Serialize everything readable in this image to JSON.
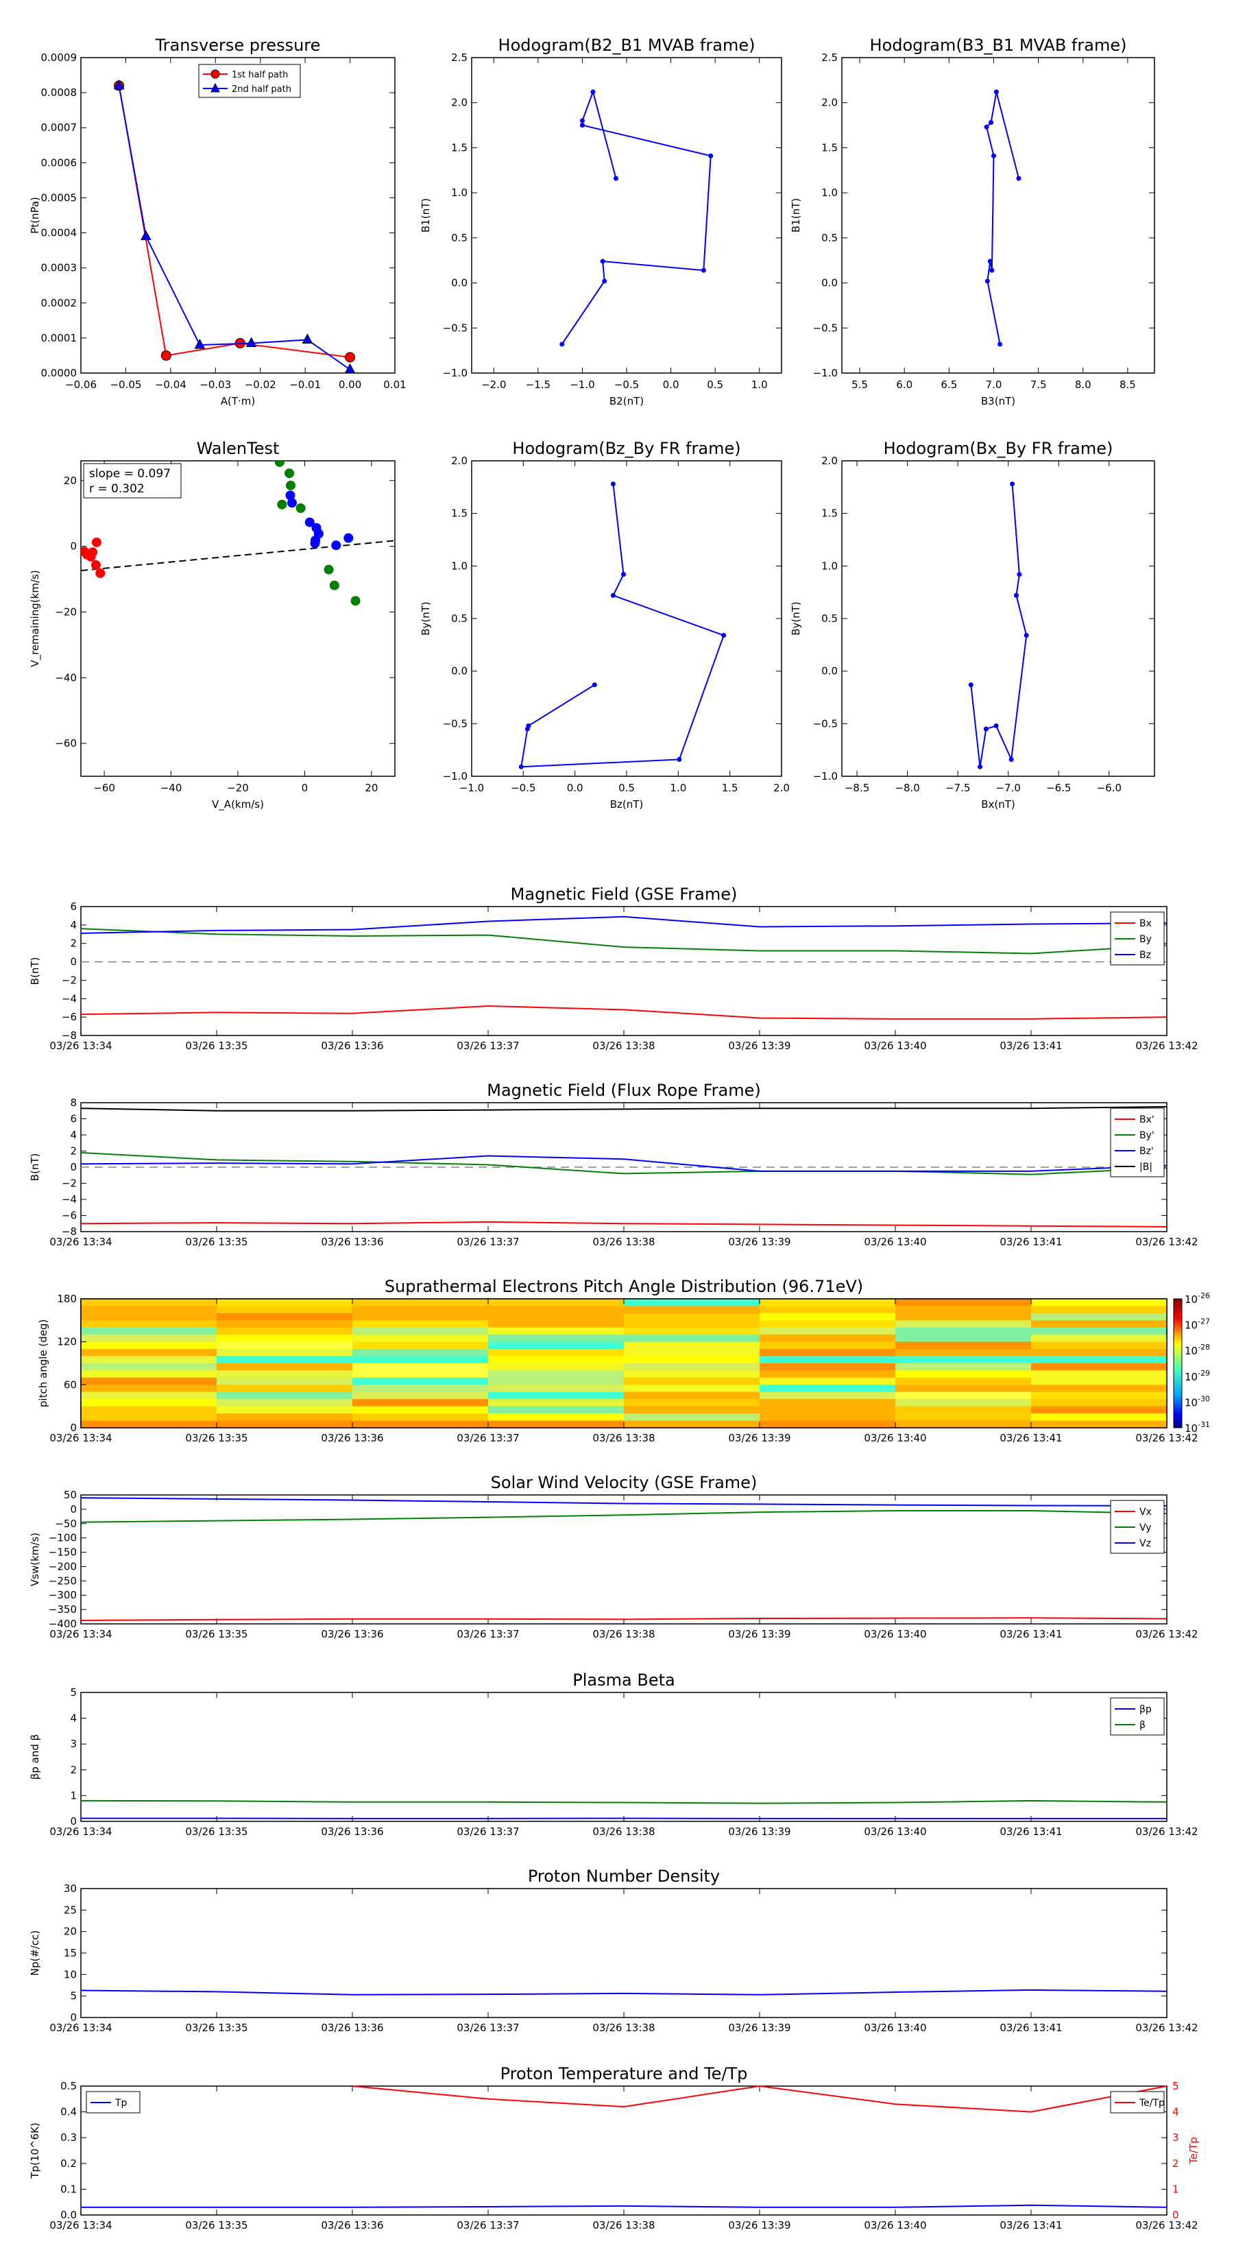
{
  "colors": {
    "red": "#ff0000",
    "green": "#008000",
    "blue": "#0000ff",
    "black": "#000000",
    "gray": "#808080",
    "darkred": "#b00000",
    "navy": "#000080"
  },
  "chart_data": [
    {
      "id": "transverse-pressure",
      "type": "line",
      "title": "Transverse pressure",
      "xlabel": "A(T·m)",
      "ylabel": "Pt(nPa)",
      "xlim": [
        -0.06,
        0.01
      ],
      "ylim": [
        0,
        0.0009
      ],
      "xticks": [
        -0.06,
        -0.05,
        -0.04,
        -0.03,
        -0.02,
        -0.01,
        0.0,
        0.01
      ],
      "xtick_labels": [
        "−0.06",
        "−0.05",
        "−0.04",
        "−0.03",
        "−0.02",
        "−0.01",
        "0.00",
        "0.01"
      ],
      "yticks": [
        0,
        0.0001,
        0.0002,
        0.0003,
        0.0004,
        0.0005,
        0.0006,
        0.0007,
        0.0008,
        0.0009
      ],
      "ytick_labels": [
        "0.0000",
        "0.0001",
        "0.0002",
        "0.0003",
        "0.0004",
        "0.0005",
        "0.0006",
        "0.0007",
        "0.0008",
        "0.0009"
      ],
      "legend": {
        "placement": "top-center",
        "entries": [
          "1st half path",
          "2nd half path"
        ]
      },
      "series": [
        {
          "name": "1st half path",
          "color": "red",
          "marker": "circle",
          "x": [
            -0.0515,
            -0.041,
            -0.0245,
            0.0
          ],
          "y": [
            0.00082,
            5e-05,
            8.5e-05,
            4.5e-05
          ]
        },
        {
          "name": "2nd half path",
          "color": "blue",
          "marker": "triangle",
          "x": [
            -0.0515,
            -0.0455,
            -0.0335,
            -0.022,
            -0.0095,
            0.0
          ],
          "y": [
            0.00082,
            0.00039,
            8e-05,
            8.5e-05,
            9.5e-05,
            1e-05
          ]
        }
      ]
    },
    {
      "id": "hodogram-b2-b1",
      "type": "line",
      "title": "Hodogram(B2_B1 MVAB frame)",
      "xlabel": "B2(nT)",
      "ylabel": "B1(nT)",
      "xlim": [
        -2.25,
        1.25
      ],
      "ylim": [
        -1,
        2.5
      ],
      "xticks": [
        -2,
        -1.5,
        -1,
        -0.5,
        0,
        0.5,
        1
      ],
      "xtick_labels": [
        "−2.0",
        "−1.5",
        "−1.0",
        "−0.5",
        "0.0",
        "0.5",
        "1.0"
      ],
      "yticks": [
        -1,
        -0.5,
        0,
        0.5,
        1,
        1.5,
        2,
        2.5
      ],
      "ytick_labels": [
        "−1.0",
        "−0.5",
        "0.0",
        "0.5",
        "1.0",
        "1.5",
        "2.0",
        "2.5"
      ],
      "series": [
        {
          "color": "blue",
          "marker": "dot",
          "x": [
            -0.62,
            -0.88,
            -1.0,
            -1.0,
            0.45,
            0.37,
            -0.77,
            -0.75,
            -1.23
          ],
          "y": [
            1.16,
            2.12,
            1.8,
            1.75,
            1.41,
            0.14,
            0.24,
            0.02,
            -0.68
          ]
        }
      ]
    },
    {
      "id": "hodogram-b3-b1",
      "type": "line",
      "title": "Hodogram(B3_B1 MVAB frame)",
      "xlabel": "B3(nT)",
      "ylabel": "B1(nT)",
      "xlim": [
        5.3,
        8.8
      ],
      "ylim": [
        -1,
        2.5
      ],
      "xticks": [
        5.5,
        6,
        6.5,
        7,
        7.5,
        8,
        8.5
      ],
      "xtick_labels": [
        "5.5",
        "6.0",
        "6.5",
        "7.0",
        "7.5",
        "8.0",
        "8.5"
      ],
      "yticks": [
        -1,
        -0.5,
        0,
        0.5,
        1,
        1.5,
        2,
        2.5
      ],
      "ytick_labels": [
        "−1.0",
        "−0.5",
        "0.0",
        "0.5",
        "1.0",
        "1.5",
        "2.0",
        "2.5"
      ],
      "series": [
        {
          "color": "blue",
          "marker": "dot",
          "x": [
            7.28,
            7.03,
            6.97,
            6.92,
            7.0,
            6.98,
            6.96,
            6.93,
            7.07
          ],
          "y": [
            1.16,
            2.12,
            1.78,
            1.73,
            1.41,
            0.14,
            0.24,
            0.02,
            -0.68
          ]
        }
      ]
    },
    {
      "id": "walen-test",
      "type": "scatter",
      "title": "WalenTest",
      "xlabel": "V_A(km/s)",
      "ylabel": "V_remaining(km/s)",
      "xlim": [
        -67,
        27
      ],
      "ylim": [
        -70,
        26
      ],
      "xticks": [
        -60,
        -40,
        -20,
        0,
        20
      ],
      "xtick_labels": [
        "−60",
        "−40",
        "−20",
        "0",
        "20"
      ],
      "yticks": [
        -60,
        -40,
        -20,
        0,
        20
      ],
      "ytick_labels": [
        "−60",
        "−40",
        "−20",
        "0",
        "20"
      ],
      "annotation": [
        "slope = 0.097",
        "r = 0.302"
      ],
      "fit_line": {
        "slope": 0.097,
        "intercept": -0.9
      },
      "series": [
        {
          "color": "red",
          "x": [
            -62.3,
            -63.5,
            -64.5,
            -65.2,
            -66.0,
            -64.0,
            -62.5,
            -61.2
          ],
          "y": [
            1.2,
            -1.8,
            -2.8,
            -2.5,
            -1.6,
            -3.2,
            -5.7,
            -8.2
          ]
        },
        {
          "color": "green",
          "x": [
            -7.5,
            -4.6,
            -4.2,
            -6.8,
            -1.2,
            7.2,
            8.9,
            15.2
          ],
          "y": [
            25.6,
            22.2,
            18.5,
            12.7,
            11.6,
            -7.1,
            -11.9,
            -16.6
          ]
        },
        {
          "color": "blue",
          "x": [
            -4.3,
            -3.8,
            1.5,
            3.5,
            4.2,
            3.2,
            3.1,
            9.4,
            13.1
          ],
          "y": [
            15.5,
            13.2,
            7.3,
            5.6,
            3.8,
            1.8,
            0.9,
            0.3,
            2.5
          ]
        }
      ]
    },
    {
      "id": "hodogram-bz-by",
      "type": "line",
      "title": "Hodogram(Bz_By FR frame)",
      "xlabel": "Bz(nT)",
      "ylabel": "By(nT)",
      "xlim": [
        -1,
        2
      ],
      "ylim": [
        -1,
        2
      ],
      "xticks": [
        -1,
        -0.5,
        0,
        0.5,
        1,
        1.5,
        2
      ],
      "xtick_labels": [
        "−1.0",
        "−0.5",
        "0.0",
        "0.5",
        "1.0",
        "1.5",
        "2.0"
      ],
      "yticks": [
        -1,
        -0.5,
        0,
        0.5,
        1,
        1.5,
        2
      ],
      "ytick_labels": [
        "−1.0",
        "−0.5",
        "0.0",
        "0.5",
        "1.0",
        "1.5",
        "2.0"
      ],
      "series": [
        {
          "color": "blue",
          "marker": "dot",
          "x": [
            0.37,
            0.47,
            0.37,
            1.44,
            1.01,
            -0.52,
            -0.46,
            -0.45,
            0.19
          ],
          "y": [
            1.78,
            0.92,
            0.72,
            0.34,
            -0.84,
            -0.91,
            -0.55,
            -0.52,
            -0.13
          ]
        }
      ]
    },
    {
      "id": "hodogram-bx-by",
      "type": "line",
      "title": "Hodogram(Bx_By FR frame)",
      "xlabel": "Bx(nT)",
      "ylabel": "By(nT)",
      "xlim": [
        -8.65,
        -5.55
      ],
      "ylim": [
        -1,
        2
      ],
      "xticks": [
        -8.5,
        -8,
        -7.5,
        -7,
        -6.5,
        -6
      ],
      "xtick_labels": [
        "−8.5",
        "−8.0",
        "−7.5",
        "−7.0",
        "−6.5",
        "−6.0"
      ],
      "yticks": [
        -1,
        -0.5,
        0,
        0.5,
        1,
        1.5,
        2
      ],
      "ytick_labels": [
        "−1.0",
        "−0.5",
        "0.0",
        "0.5",
        "1.0",
        "1.5",
        "2.0"
      ],
      "series": [
        {
          "color": "blue",
          "marker": "dot",
          "x": [
            -6.96,
            -6.89,
            -6.92,
            -6.82,
            -6.97,
            -7.12,
            -7.22,
            -7.28,
            -7.37
          ],
          "y": [
            1.78,
            0.92,
            0.72,
            0.34,
            -0.84,
            -0.52,
            -0.55,
            -0.91,
            -0.13
          ]
        }
      ]
    },
    {
      "id": "mag-gse",
      "type": "line",
      "title": "Magnetic Field (GSE Frame)",
      "ylabel": "B(nT)",
      "ylim": [
        -8,
        6
      ],
      "yticks": [
        -8,
        -6,
        -4,
        -2,
        0,
        2,
        4,
        6
      ],
      "ytick_labels": [
        "−8",
        "−6",
        "−4",
        "−2",
        "0",
        "2",
        "4",
        "6"
      ],
      "zero_dashed": true,
      "legend": {
        "placement": "top-right",
        "entries": [
          "Bx",
          "By",
          "Bz"
        ]
      },
      "series": [
        {
          "name": "Bx",
          "color": "red",
          "values": [
            -5.7,
            -5.5,
            -5.6,
            -4.8,
            -5.2,
            -6.1,
            -6.2,
            -6.2,
            -6.0
          ]
        },
        {
          "name": "By",
          "color": "green",
          "values": [
            3.6,
            3.0,
            2.8,
            2.9,
            1.6,
            1.2,
            1.2,
            0.9,
            1.8
          ]
        },
        {
          "name": "Bz",
          "color": "blue",
          "values": [
            3.1,
            3.4,
            3.5,
            4.4,
            4.9,
            3.8,
            3.9,
            4.1,
            4.2
          ]
        }
      ]
    },
    {
      "id": "mag-fr",
      "type": "line",
      "title": "Magnetic Field (Flux Rope Frame)",
      "ylabel": "B(nT)",
      "ylim": [
        -8,
        8
      ],
      "yticks": [
        -8,
        -6,
        -4,
        -2,
        0,
        2,
        4,
        6,
        8
      ],
      "ytick_labels": [
        "−8",
        "−6",
        "−4",
        "−2",
        "0",
        "2",
        "4",
        "6",
        "8"
      ],
      "zero_dashed": true,
      "legend": {
        "placement": "top-right",
        "entries": [
          "Bx'",
          "By'",
          "Bz'",
          "|B|"
        ]
      },
      "series": [
        {
          "name": "Bx'",
          "color": "red",
          "values": [
            -7.0,
            -6.9,
            -7.0,
            -6.8,
            -7.0,
            -7.1,
            -7.2,
            -7.3,
            -7.4
          ]
        },
        {
          "name": "By'",
          "color": "green",
          "values": [
            1.8,
            0.9,
            0.7,
            0.3,
            -0.8,
            -0.5,
            -0.5,
            -0.9,
            -0.1
          ]
        },
        {
          "name": "Bz'",
          "color": "blue",
          "values": [
            0.4,
            0.5,
            0.4,
            1.4,
            1.0,
            -0.5,
            -0.5,
            -0.5,
            0.2
          ]
        },
        {
          "name": "|B|",
          "color": "black",
          "values": [
            7.3,
            7.0,
            7.0,
            7.1,
            7.2,
            7.3,
            7.3,
            7.3,
            7.5
          ]
        }
      ]
    },
    {
      "id": "pad",
      "type": "heatmap",
      "title": "Suprathermal Electrons Pitch Angle Distribution (96.71eV)",
      "ylabel": "pitch angle (deg)",
      "ylim": [
        0,
        180
      ],
      "yticks": [
        0,
        60,
        120,
        180
      ],
      "ytick_labels": [
        "0",
        "60",
        "120",
        "180"
      ],
      "colorbar": {
        "ticks": [
          "10",
          "10",
          "10",
          "10",
          "10",
          "10"
        ],
        "exponents": [
          "-26",
          "-27",
          "-28",
          "-29",
          "-30",
          "-31"
        ]
      }
    },
    {
      "id": "sw-velocity",
      "type": "line",
      "title": "Solar Wind Velocity (GSE Frame)",
      "ylabel": "Vsw(km/s)",
      "ylim": [
        -400,
        50
      ],
      "yticks": [
        50,
        0,
        -50,
        -100,
        -150,
        -200,
        -250,
        -300,
        -350,
        -400
      ],
      "ytick_labels": [
        "50",
        "0",
        "−50",
        "−100",
        "−150",
        "−200",
        "−250",
        "−300",
        "−350",
        "−400"
      ],
      "legend": {
        "placement": "top-right",
        "entries": [
          "Vx",
          "Vy",
          "Vz"
        ]
      },
      "series": [
        {
          "name": "Vx",
          "color": "red",
          "values": [
            -388,
            -385,
            -383,
            -383,
            -384,
            -381,
            -380,
            -379,
            -382
          ]
        },
        {
          "name": "Vy",
          "color": "green",
          "values": [
            -45,
            -40,
            -35,
            -28,
            -20,
            -10,
            -5,
            -5,
            -15
          ]
        },
        {
          "name": "Vz",
          "color": "blue",
          "values": [
            40,
            36,
            32,
            26,
            20,
            18,
            15,
            13,
            12
          ]
        }
      ]
    },
    {
      "id": "plasma-beta",
      "type": "line",
      "title": "Plasma Beta",
      "ylabel": "βp and β",
      "ylim": [
        0,
        5
      ],
      "yticks": [
        0,
        1,
        2,
        3,
        4,
        5
      ],
      "ytick_labels": [
        "0",
        "1",
        "2",
        "3",
        "4",
        "5"
      ],
      "legend": {
        "placement": "top-right",
        "entries": [
          "βp",
          "β"
        ]
      },
      "series": [
        {
          "name": "βp",
          "color": "blue",
          "values": [
            0.12,
            0.12,
            0.11,
            0.11,
            0.12,
            0.11,
            0.11,
            0.11,
            0.11
          ]
        },
        {
          "name": "β",
          "color": "green",
          "values": [
            0.8,
            0.79,
            0.75,
            0.75,
            0.73,
            0.7,
            0.73,
            0.8,
            0.75
          ]
        }
      ]
    },
    {
      "id": "density",
      "type": "line",
      "title": "Proton Number Density",
      "ylabel": "Np(#/cc)",
      "ylim": [
        0,
        30
      ],
      "yticks": [
        0,
        5,
        10,
        15,
        20,
        25,
        30
      ],
      "ytick_labels": [
        "0",
        "5",
        "10",
        "15",
        "20",
        "25",
        "30"
      ],
      "series": [
        {
          "color": "blue",
          "values": [
            6.3,
            6.0,
            5.3,
            5.4,
            5.6,
            5.3,
            5.9,
            6.4,
            6.1
          ]
        }
      ]
    },
    {
      "id": "temperature",
      "type": "line",
      "title": "Proton Temperature and Te/Tp",
      "ylabel": "Tp(10^6K)",
      "ylim": [
        0,
        0.5
      ],
      "yticks": [
        0,
        0.1,
        0.2,
        0.3,
        0.4,
        0.5
      ],
      "ytick_labels": [
        "0.0",
        "0.1",
        "0.2",
        "0.3",
        "0.4",
        "0.5"
      ],
      "right_ylabel": "Te/Tp",
      "right_ylim": [
        0,
        5
      ],
      "right_yticks": [
        0,
        1,
        2,
        3,
        4,
        5
      ],
      "right_ytick_labels": [
        "0",
        "1",
        "2",
        "3",
        "4",
        "5"
      ],
      "legend": {
        "placement": "top-left",
        "entries": [
          "Tp"
        ]
      },
      "right_legend": {
        "placement": "top-right",
        "entries": [
          "Te/Tp"
        ]
      },
      "series": [
        {
          "name": "Tp",
          "color": "blue",
          "values": [
            0.03,
            0.03,
            0.03,
            0.032,
            0.035,
            0.03,
            0.03,
            0.038,
            0.03
          ]
        }
      ],
      "right_series": [
        {
          "name": "Te/Tp",
          "color": "red",
          "values": [
            null,
            null,
            5.0,
            4.5,
            4.2,
            5.0,
            4.3,
            4.0,
            5.0
          ]
        }
      ]
    }
  ],
  "time_axis": {
    "labels": [
      "03/26 13:34",
      "03/26 13:35",
      "03/26 13:36",
      "03/26 13:37",
      "03/26 13:38",
      "03/26 13:39",
      "03/26 13:40",
      "03/26 13:41",
      "03/26 13:42"
    ]
  }
}
